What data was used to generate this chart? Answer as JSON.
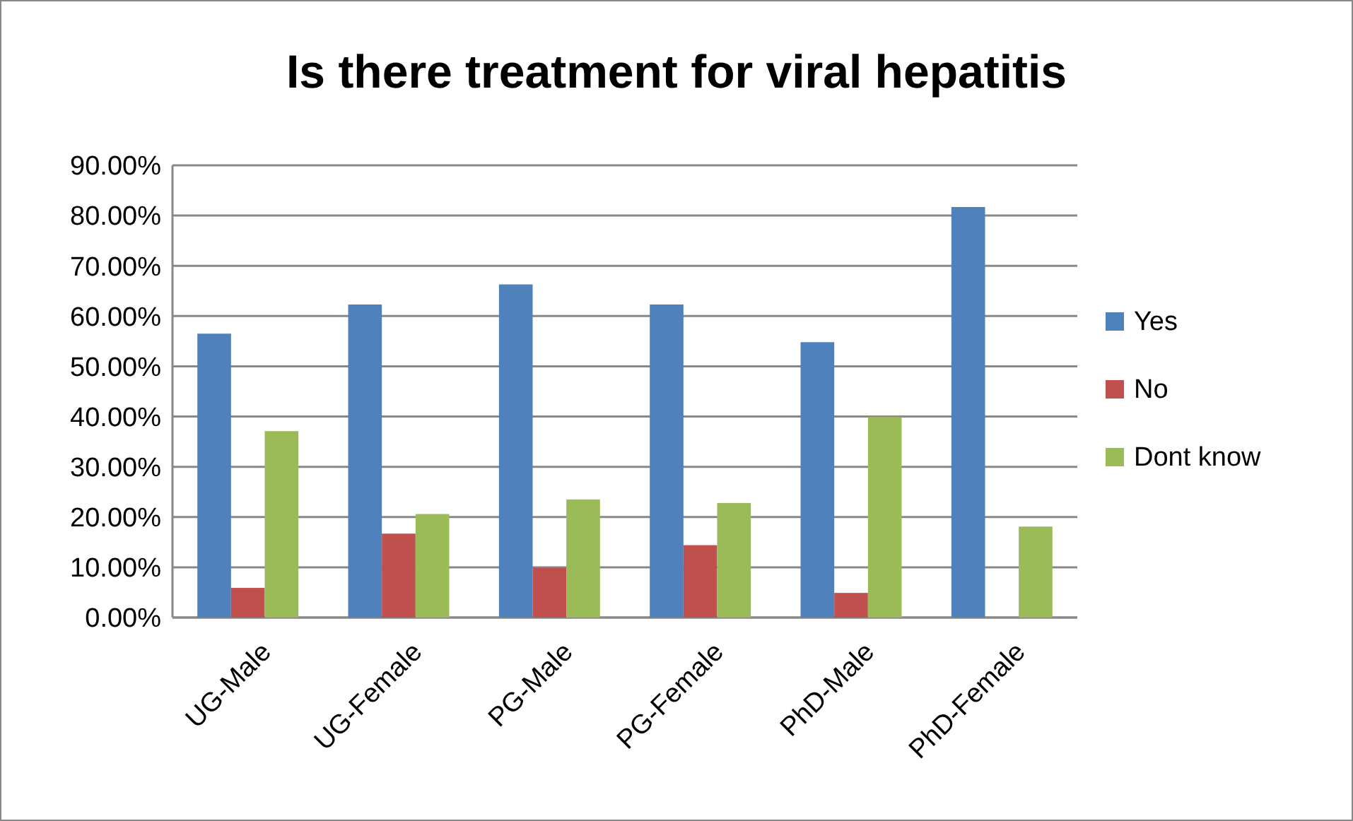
{
  "chart_data": {
    "type": "bar",
    "title": "Is there treatment for viral hepatitis",
    "categories": [
      "UG-Male",
      "UG-Female",
      "PG-Male",
      "PG-Female",
      "PhD-Male",
      "PhD-Female"
    ],
    "series": [
      {
        "name": "Yes",
        "color": "#4f81bd",
        "values": [
          56.5,
          62.3,
          66.3,
          62.3,
          54.8,
          81.7
        ]
      },
      {
        "name": "No",
        "color": "#c0504d",
        "values": [
          5.9,
          16.7,
          9.9,
          14.4,
          4.9,
          0
        ]
      },
      {
        "name": "Dont know",
        "color": "#9bbb59",
        "values": [
          37.1,
          20.6,
          23.5,
          22.8,
          39.9,
          18.1
        ]
      }
    ],
    "ylim": [
      0,
      90
    ],
    "yticks": [
      {
        "value": 0,
        "label": "0.00%"
      },
      {
        "value": 10,
        "label": "10.00%"
      },
      {
        "value": 20,
        "label": "20.00%"
      },
      {
        "value": 30,
        "label": "30.00%"
      },
      {
        "value": 40,
        "label": "40.00%"
      },
      {
        "value": 50,
        "label": "50.00%"
      },
      {
        "value": 60,
        "label": "60.00%"
      },
      {
        "value": 70,
        "label": "70.00%"
      },
      {
        "value": 80,
        "label": "80.00%"
      },
      {
        "value": 90,
        "label": "90.00%"
      }
    ],
    "grid": "y",
    "legend": "right"
  }
}
